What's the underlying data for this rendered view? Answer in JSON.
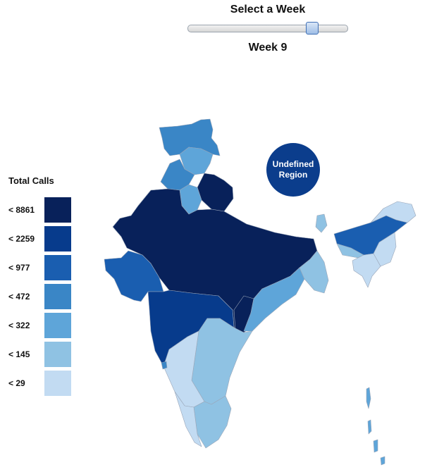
{
  "slider": {
    "title": "Select a Week",
    "week_label": "Week 9",
    "value": 9,
    "min": 1,
    "max": 11
  },
  "legend": {
    "title": "Total Calls",
    "items": [
      {
        "label": "< 8861",
        "color": "#08215a"
      },
      {
        "label": "< 2259",
        "color": "#073b8c"
      },
      {
        "label": "< 977",
        "color": "#1a5eb0"
      },
      {
        "label": "< 472",
        "color": "#3a86c6"
      },
      {
        "label": "< 322",
        "color": "#5ea5d9"
      },
      {
        "label": "< 145",
        "color": "#8fc2e3"
      },
      {
        "label": "< 29",
        "color": "#c2dbf2"
      }
    ]
  },
  "undefined_region": {
    "label": "Undefined\nRegion",
    "color": "#0b3d8c"
  },
  "regions": [
    {
      "name": "jammu-kashmir",
      "bucket": 3
    },
    {
      "name": "himachal-pradesh",
      "bucket": 4
    },
    {
      "name": "punjab",
      "bucket": 3
    },
    {
      "name": "uttarakhand",
      "bucket": 0
    },
    {
      "name": "haryana-delhi",
      "bucket": 4
    },
    {
      "name": "rajasthan-up-mp-bihar-jharkhand",
      "bucket": 0
    },
    {
      "name": "gujarat",
      "bucket": 2
    },
    {
      "name": "maharashtra",
      "bucket": 1
    },
    {
      "name": "chhattisgarh",
      "bucket": 0
    },
    {
      "name": "odisha",
      "bucket": 4
    },
    {
      "name": "west-bengal",
      "bucket": 5
    },
    {
      "name": "telangana-andhra",
      "bucket": 5
    },
    {
      "name": "karnataka",
      "bucket": 6
    },
    {
      "name": "tamil-nadu",
      "bucket": 5
    },
    {
      "name": "kerala",
      "bucket": 6
    },
    {
      "name": "goa",
      "bucket": 3
    },
    {
      "name": "sikkim",
      "bucket": 5
    },
    {
      "name": "assam",
      "bucket": 2
    },
    {
      "name": "arunachal",
      "bucket": 6
    },
    {
      "name": "nagaland-manipur",
      "bucket": 6
    },
    {
      "name": "meghalaya",
      "bucket": 5
    },
    {
      "name": "tripura-mizoram",
      "bucket": 6
    },
    {
      "name": "andaman-islands",
      "bucket": 4
    }
  ]
}
